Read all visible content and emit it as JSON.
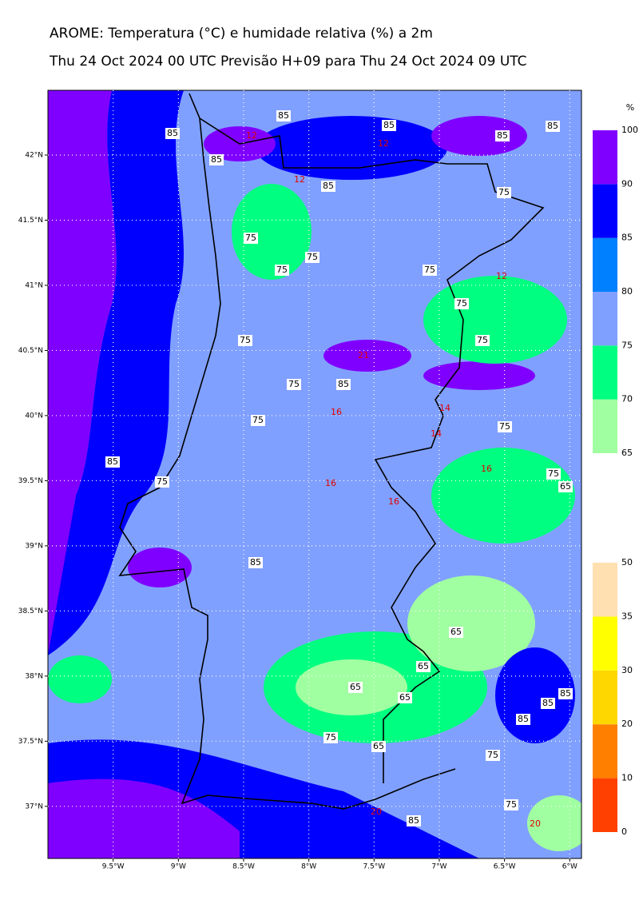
{
  "header": {
    "title": "AROME: Temperatura (°C) e humidade relativa (%) a 2m",
    "subtitle": "Thu 24 Oct 2024 00 UTC Previsão H+09 para Thu 24 Oct 2024 09 UTC"
  },
  "map": {
    "lonlim": [
      -10.0,
      -5.91
    ],
    "latlim": [
      36.6,
      42.497
    ],
    "lon_ticks": [
      {
        "value": -9.5,
        "label": "9.5°W"
      },
      {
        "value": -9,
        "label": "9°W"
      },
      {
        "value": -8.5,
        "label": "8.5°W"
      },
      {
        "value": -8,
        "label": "8°W"
      },
      {
        "value": -7.5,
        "label": "7.5°W"
      },
      {
        "value": -7,
        "label": "7°W"
      },
      {
        "value": -6.5,
        "label": "6.5°W"
      },
      {
        "value": -6,
        "label": "6°W"
      }
    ],
    "lat_ticks": [
      {
        "value": 42,
        "label": "42°N"
      },
      {
        "value": 41.5,
        "label": "41.5°N"
      },
      {
        "value": 41,
        "label": "41°N"
      },
      {
        "value": 40.5,
        "label": "40.5°N"
      },
      {
        "value": 40,
        "label": "40°N"
      },
      {
        "value": 39.5,
        "label": "39.5°N"
      },
      {
        "value": 39,
        "label": "39°N"
      },
      {
        "value": 38.5,
        "label": "38.5°N"
      },
      {
        "value": 38,
        "label": "38°N"
      },
      {
        "value": 37.5,
        "label": "37.5°N"
      },
      {
        "value": 37,
        "label": "37°N"
      }
    ],
    "humidity_contour_labels": [
      85,
      85,
      85,
      85,
      85,
      85,
      85,
      75,
      75,
      75,
      75,
      75,
      75,
      75,
      75,
      75,
      85,
      75,
      75,
      85,
      75,
      75,
      65,
      85,
      65,
      65,
      65,
      65,
      85,
      85,
      85,
      75,
      65,
      75,
      75,
      85
    ],
    "temperature_contour_labels": [
      12,
      12,
      12,
      12,
      21,
      16,
      14,
      14,
      16,
      16,
      16,
      20,
      20
    ]
  },
  "humidity_colorbar": {
    "unit": "%",
    "levels": [
      65,
      70,
      75,
      80,
      85,
      90,
      100
    ],
    "colors": [
      "#a0ffa0",
      "#00ff80",
      "#80a0ff",
      "#0080ff",
      "#0000ff",
      "#8000ff"
    ]
  },
  "temperature_colorbar": {
    "levels": [
      0,
      10,
      20,
      30,
      35,
      50
    ],
    "colors": [
      "#ff4000",
      "#ff8000",
      "#ffd700",
      "#ffff00",
      "#ffe0b0"
    ]
  }
}
